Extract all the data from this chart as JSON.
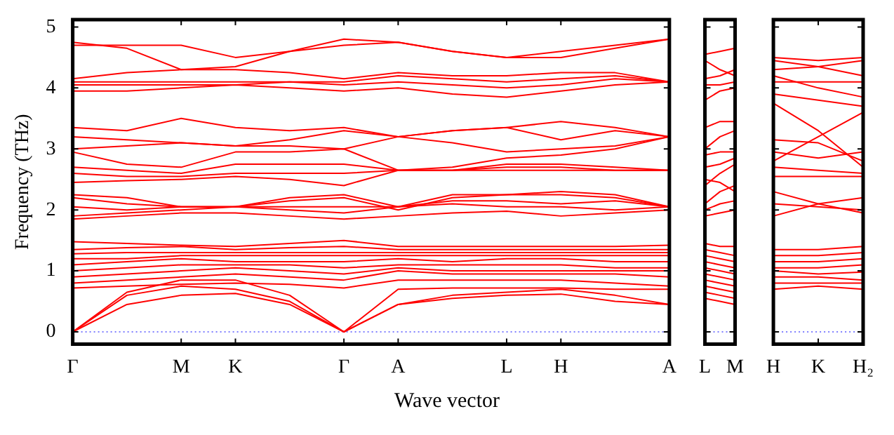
{
  "chart_data": [
    {
      "type": "line",
      "xlabel": "Wave vector",
      "ylabel": "Frequency (THz)",
      "ylim": [
        -0.2,
        5.12
      ],
      "categories": [
        "Γ",
        null,
        "M",
        "K",
        null,
        "Γ",
        "A",
        null,
        "L",
        "H",
        null,
        "A"
      ],
      "yticks": [
        0,
        1,
        2,
        3,
        4,
        5
      ],
      "ref_lines": [
        {
          "axis": "y",
          "value": 0,
          "color": "#8080ff",
          "line_style": "dotted"
        }
      ],
      "series": [
        {
          "color": "#ff0000",
          "values": [
            0,
            0.45,
            0.6,
            0.63,
            0.45,
            0,
            0.45,
            0.55,
            0.6,
            0.62,
            0.5,
            0.45
          ]
        },
        {
          "color": "#ff0000",
          "values": [
            0,
            0.6,
            0.75,
            0.7,
            0.5,
            0,
            0.45,
            0.6,
            0.65,
            0.7,
            0.6,
            0.45
          ]
        },
        {
          "color": "#ff0000",
          "values": [
            0,
            0.65,
            0.85,
            0.85,
            0.6,
            0,
            0.7,
            0.72,
            0.72,
            0.72,
            0.7,
            0.7
          ]
        },
        {
          "color": "#ff0000",
          "values": [
            0.72,
            0.75,
            0.78,
            0.8,
            0.78,
            0.72,
            0.85,
            0.85,
            0.85,
            0.85,
            0.8,
            0.75
          ]
        },
        {
          "color": "#ff0000",
          "values": [
            0.8,
            0.85,
            0.9,
            0.95,
            0.9,
            0.85,
            1.0,
            0.95,
            0.95,
            0.95,
            0.95,
            0.9
          ]
        },
        {
          "color": "#ff0000",
          "values": [
            0.9,
            0.95,
            1.0,
            1.05,
            1.0,
            0.95,
            1.05,
            1.0,
            1.0,
            1.0,
            1.0,
            1.0
          ]
        },
        {
          "color": "#ff0000",
          "values": [
            1.0,
            1.05,
            1.1,
            1.1,
            1.1,
            1.05,
            1.1,
            1.1,
            1.1,
            1.1,
            1.05,
            1.05
          ]
        },
        {
          "color": "#ff0000",
          "values": [
            1.1,
            1.15,
            1.2,
            1.15,
            1.15,
            1.15,
            1.2,
            1.15,
            1.2,
            1.2,
            1.15,
            1.15
          ]
        },
        {
          "color": "#ff0000",
          "values": [
            1.2,
            1.2,
            1.25,
            1.25,
            1.25,
            1.25,
            1.25,
            1.25,
            1.25,
            1.25,
            1.25,
            1.25
          ]
        },
        {
          "color": "#ff0000",
          "values": [
            1.28,
            1.3,
            1.3,
            1.3,
            1.3,
            1.3,
            1.3,
            1.3,
            1.3,
            1.3,
            1.3,
            1.3
          ]
        },
        {
          "color": "#ff0000",
          "values": [
            1.35,
            1.38,
            1.4,
            1.35,
            1.38,
            1.4,
            1.35,
            1.35,
            1.35,
            1.35,
            1.35,
            1.35
          ]
        },
        {
          "color": "#ff0000",
          "values": [
            1.48,
            1.45,
            1.42,
            1.4,
            1.45,
            1.5,
            1.4,
            1.4,
            1.4,
            1.4,
            1.4,
            1.42
          ]
        },
        {
          "color": "#ff0000",
          "values": [
            1.85,
            1.9,
            1.95,
            1.95,
            1.9,
            1.85,
            1.9,
            1.95,
            1.98,
            1.9,
            1.95,
            2.0
          ]
        },
        {
          "color": "#ff0000",
          "values": [
            1.9,
            1.95,
            2.0,
            2.05,
            2.0,
            1.95,
            2.05,
            2.1,
            2.05,
            2.05,
            2.0,
            2.05
          ]
        },
        {
          "color": "#ff0000",
          "values": [
            2.05,
            2.0,
            2.05,
            2.05,
            2.05,
            2.05,
            2.05,
            2.15,
            2.15,
            2.1,
            2.15,
            2.05
          ]
        },
        {
          "color": "#ff0000",
          "values": [
            2.2,
            2.1,
            2.05,
            2.05,
            2.15,
            2.2,
            2.0,
            2.2,
            2.25,
            2.25,
            2.2,
            2.05
          ]
        },
        {
          "color": "#ff0000",
          "values": [
            2.25,
            2.2,
            2.05,
            2.05,
            2.2,
            2.25,
            2.05,
            2.25,
            2.25,
            2.3,
            2.25,
            2.05
          ]
        },
        {
          "color": "#ff0000",
          "values": [
            2.45,
            2.48,
            2.5,
            2.55,
            2.5,
            2.4,
            2.65,
            2.65,
            2.65,
            2.65,
            2.65,
            2.65
          ]
        },
        {
          "color": "#ff0000",
          "values": [
            2.6,
            2.55,
            2.55,
            2.6,
            2.6,
            2.6,
            2.65,
            2.65,
            2.7,
            2.7,
            2.65,
            2.65
          ]
        },
        {
          "color": "#ff0000",
          "values": [
            2.7,
            2.65,
            2.6,
            2.75,
            2.75,
            2.75,
            2.65,
            2.65,
            2.75,
            2.75,
            2.7,
            2.65
          ]
        },
        {
          "color": "#ff0000",
          "values": [
            2.95,
            2.75,
            2.7,
            2.95,
            2.95,
            3.0,
            2.65,
            2.7,
            2.85,
            2.9,
            3.0,
            3.2
          ]
        },
        {
          "color": "#ff0000",
          "values": [
            3.0,
            3.05,
            3.1,
            3.05,
            3.05,
            3.0,
            3.2,
            3.1,
            2.95,
            3.0,
            3.05,
            3.2
          ]
        },
        {
          "color": "#ff0000",
          "values": [
            3.2,
            3.15,
            3.1,
            3.05,
            3.15,
            3.3,
            3.2,
            3.3,
            3.35,
            3.15,
            3.3,
            3.2
          ]
        },
        {
          "color": "#ff0000",
          "values": [
            3.35,
            3.3,
            3.5,
            3.35,
            3.3,
            3.35,
            3.2,
            3.3,
            3.35,
            3.45,
            3.35,
            3.2
          ]
        },
        {
          "color": "#ff0000",
          "values": [
            3.95,
            3.95,
            4.0,
            4.05,
            4.0,
            3.95,
            4.0,
            3.9,
            3.85,
            3.95,
            4.05,
            4.1
          ]
        },
        {
          "color": "#ff0000",
          "values": [
            4.05,
            4.05,
            4.05,
            4.05,
            4.1,
            4.05,
            4.1,
            4.05,
            4.0,
            4.05,
            4.15,
            4.1
          ]
        },
        {
          "color": "#ff0000",
          "values": [
            4.1,
            4.1,
            4.1,
            4.1,
            4.1,
            4.1,
            4.2,
            4.15,
            4.1,
            4.15,
            4.2,
            4.1
          ]
        },
        {
          "color": "#ff0000",
          "values": [
            4.15,
            4.25,
            4.3,
            4.3,
            4.25,
            4.15,
            4.25,
            4.2,
            4.2,
            4.25,
            4.25,
            4.1
          ]
        },
        {
          "color": "#ff0000",
          "values": [
            4.75,
            4.65,
            4.3,
            4.35,
            4.6,
            4.8,
            4.75,
            4.6,
            4.5,
            4.5,
            4.65,
            4.8
          ]
        },
        {
          "color": "#ff0000",
          "values": [
            4.7,
            4.7,
            4.7,
            4.5,
            4.6,
            4.7,
            4.75,
            4.6,
            4.5,
            4.6,
            4.7,
            4.8
          ]
        }
      ]
    },
    {
      "type": "line",
      "ylim": [
        -0.2,
        5.12
      ],
      "tick_labels": "x",
      "yticks": [
        0,
        1,
        2,
        3,
        4,
        5
      ],
      "categories": [
        "L",
        null,
        "M"
      ],
      "ref_lines": [
        {
          "axis": "y",
          "value": 0,
          "color": "#8080ff",
          "line_style": "dotted"
        }
      ],
      "series": [
        {
          "color": "#ff0000",
          "values": [
            0.55,
            0.5,
            0.45
          ]
        },
        {
          "color": "#ff0000",
          "values": [
            0.65,
            0.6,
            0.55
          ]
        },
        {
          "color": "#ff0000",
          "values": [
            0.75,
            0.7,
            0.65
          ]
        },
        {
          "color": "#ff0000",
          "values": [
            0.85,
            0.8,
            0.75
          ]
        },
        {
          "color": "#ff0000",
          "values": [
            0.95,
            0.9,
            0.85
          ]
        },
        {
          "color": "#ff0000",
          "values": [
            1.05,
            1.0,
            0.95
          ]
        },
        {
          "color": "#ff0000",
          "values": [
            1.15,
            1.1,
            1.05
          ]
        },
        {
          "color": "#ff0000",
          "values": [
            1.25,
            1.2,
            1.15
          ]
        },
        {
          "color": "#ff0000",
          "values": [
            1.35,
            1.3,
            1.25
          ]
        },
        {
          "color": "#ff0000",
          "values": [
            1.45,
            1.4,
            1.4
          ]
        },
        {
          "color": "#ff0000",
          "values": [
            1.9,
            1.95,
            2.0
          ]
        },
        {
          "color": "#ff0000",
          "values": [
            2.0,
            2.1,
            2.15
          ]
        },
        {
          "color": "#ff0000",
          "values": [
            2.1,
            2.3,
            2.4
          ]
        },
        {
          "color": "#ff0000",
          "values": [
            2.4,
            2.6,
            2.75
          ]
        },
        {
          "color": "#ff0000",
          "values": [
            2.5,
            2.45,
            2.3
          ]
        },
        {
          "color": "#ff0000",
          "values": [
            2.7,
            2.75,
            2.85
          ]
        },
        {
          "color": "#ff0000",
          "values": [
            2.9,
            2.95,
            2.95
          ]
        },
        {
          "color": "#ff0000",
          "values": [
            3.0,
            3.2,
            3.3
          ]
        },
        {
          "color": "#ff0000",
          "values": [
            3.35,
            3.45,
            3.45
          ]
        },
        {
          "color": "#ff0000",
          "values": [
            3.8,
            3.95,
            4.0
          ]
        },
        {
          "color": "#ff0000",
          "values": [
            4.05,
            4.05,
            4.1
          ]
        },
        {
          "color": "#ff0000",
          "values": [
            4.15,
            4.2,
            4.3
          ]
        },
        {
          "color": "#ff0000",
          "values": [
            4.45,
            4.3,
            4.2
          ]
        },
        {
          "color": "#ff0000",
          "values": [
            4.55,
            4.6,
            4.65
          ]
        }
      ]
    },
    {
      "type": "line",
      "ylim": [
        -0.2,
        5.12
      ],
      "tick_labels": "x",
      "yticks": [
        0,
        1,
        2,
        3,
        4,
        5
      ],
      "categories": [
        "H",
        "K",
        "H₂"
      ],
      "ref_lines": [
        {
          "axis": "y",
          "value": 0,
          "color": "#8080ff",
          "line_style": "dotted"
        }
      ],
      "series": [
        {
          "color": "#ff0000",
          "values": [
            0.7,
            0.75,
            0.7
          ]
        },
        {
          "color": "#ff0000",
          "values": [
            0.8,
            0.8,
            0.8
          ]
        },
        {
          "color": "#ff0000",
          "values": [
            0.9,
            0.9,
            0.85
          ]
        },
        {
          "color": "#ff0000",
          "values": [
            1.0,
            0.95,
            0.98
          ]
        },
        {
          "color": "#ff0000",
          "values": [
            1.05,
            1.05,
            1.1
          ]
        },
        {
          "color": "#ff0000",
          "values": [
            1.15,
            1.15,
            1.2
          ]
        },
        {
          "color": "#ff0000",
          "values": [
            1.25,
            1.25,
            1.3
          ]
        },
        {
          "color": "#ff0000",
          "values": [
            1.35,
            1.35,
            1.4
          ]
        },
        {
          "color": "#ff0000",
          "values": [
            1.9,
            2.1,
            2.2
          ]
        },
        {
          "color": "#ff0000",
          "values": [
            2.1,
            2.05,
            2.0
          ]
        },
        {
          "color": "#ff0000",
          "values": [
            2.3,
            2.1,
            1.95
          ]
        },
        {
          "color": "#ff0000",
          "values": [
            2.55,
            2.55,
            2.55
          ]
        },
        {
          "color": "#ff0000",
          "values": [
            2.7,
            2.65,
            2.6
          ]
        },
        {
          "color": "#ff0000",
          "values": [
            2.95,
            2.85,
            2.95
          ]
        },
        {
          "color": "#ff0000",
          "values": [
            3.15,
            3.1,
            2.8
          ]
        },
        {
          "color": "#ff0000",
          "values": [
            3.75,
            3.3,
            2.7
          ]
        },
        {
          "color": "#ff0000",
          "values": [
            2.8,
            3.2,
            3.6
          ]
        },
        {
          "color": "#ff0000",
          "values": [
            3.9,
            3.8,
            3.7
          ]
        },
        {
          "color": "#ff0000",
          "values": [
            4.1,
            4.1,
            4.1
          ]
        },
        {
          "color": "#ff0000",
          "values": [
            4.2,
            4.0,
            3.85
          ]
        },
        {
          "color": "#ff0000",
          "values": [
            4.3,
            4.35,
            4.45
          ]
        },
        {
          "color": "#ff0000",
          "values": [
            4.45,
            4.35,
            4.2
          ]
        },
        {
          "color": "#ff0000",
          "values": [
            4.5,
            4.45,
            4.5
          ]
        }
      ]
    }
  ]
}
